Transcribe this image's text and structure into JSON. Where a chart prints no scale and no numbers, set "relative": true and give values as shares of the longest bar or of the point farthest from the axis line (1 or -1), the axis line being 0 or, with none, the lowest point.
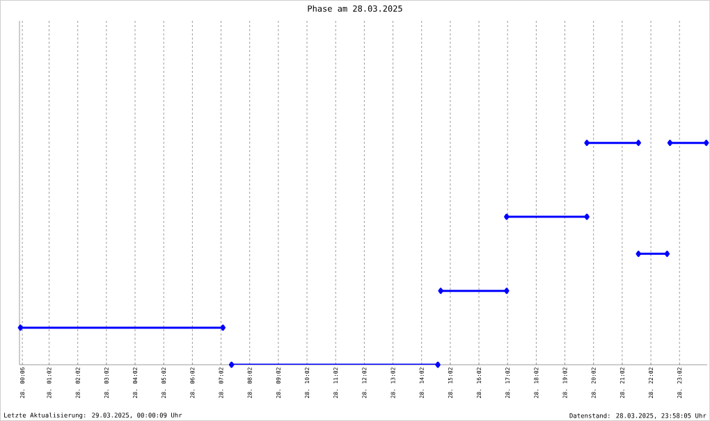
{
  "chart_data": {
    "type": "line",
    "title": "Phase am 28.03.2025",
    "relative": true,
    "grid": "x",
    "marker": "diamond",
    "line_style": "solid",
    "annotations": [
      "Letzte Aktualisierung: 29.03.2025, 00:00:09 Uhr",
      "Datenstand: 28.03.2025, 23:58:05 Uhr"
    ],
    "xlim": [
      "2025-03-28T00:00",
      "2025-03-29T00:00"
    ],
    "xticks": [
      {
        "value": "2025-03-28T00:06",
        "label": "28. 00:06"
      },
      {
        "value": "2025-03-28T01:02",
        "label": "28. 01:02"
      },
      {
        "value": "2025-03-28T02:02",
        "label": "28. 02:02"
      },
      {
        "value": "2025-03-28T03:02",
        "label": "28. 03:02"
      },
      {
        "value": "2025-03-28T04:02",
        "label": "28. 04:02"
      },
      {
        "value": "2025-03-28T05:02",
        "label": "28. 05:02"
      },
      {
        "value": "2025-03-28T06:02",
        "label": "28. 06:02"
      },
      {
        "value": "2025-03-28T07:02",
        "label": "28. 07:02"
      },
      {
        "value": "2025-03-28T08:02",
        "label": "28. 08:02"
      },
      {
        "value": "2025-03-28T09:02",
        "label": "28. 09:02"
      },
      {
        "value": "2025-03-28T10:02",
        "label": "28. 10:02"
      },
      {
        "value": "2025-03-28T11:02",
        "label": "28. 11:02"
      },
      {
        "value": "2025-03-28T12:02",
        "label": "28. 12:02"
      },
      {
        "value": "2025-03-28T13:02",
        "label": "28. 13:02"
      },
      {
        "value": "2025-03-28T14:02",
        "label": "28. 14:02"
      },
      {
        "value": "2025-03-28T15:02",
        "label": "28. 15:02"
      },
      {
        "value": "2025-03-28T16:02",
        "label": "28. 16:02"
      },
      {
        "value": "2025-03-28T17:02",
        "label": "28. 17:02"
      },
      {
        "value": "2025-03-28T18:02",
        "label": "28. 18:02"
      },
      {
        "value": "2025-03-28T19:02",
        "label": "28. 19:02"
      },
      {
        "value": "2025-03-28T20:02",
        "label": "28. 20:02"
      },
      {
        "value": "2025-03-28T21:02",
        "label": "28. 21:02"
      },
      {
        "value": "2025-03-28T22:02",
        "label": "28. 22:02"
      },
      {
        "value": "2025-03-28T23:02",
        "label": "28. 23:02"
      }
    ],
    "series": [
      {
        "color": "#0000ff",
        "x": [
          "2025-03-28T00:02",
          "2025-03-28T07:06",
          null,
          "2025-03-28T07:24",
          "2025-03-28T14:36",
          null,
          "2025-03-28T14:42",
          "2025-03-28T17:00",
          null,
          "2025-03-28T17:00",
          "2025-03-28T19:48",
          null,
          "2025-03-28T19:48",
          "2025-03-28T21:36",
          null,
          "2025-03-28T21:36",
          "2025-03-28T22:36",
          null,
          "2025-03-28T22:42",
          "2025-03-28T23:58"
        ],
        "values": [
          0.167,
          0.167,
          null,
          0,
          0,
          null,
          0.333,
          0.333,
          null,
          0.667,
          0.667,
          null,
          1,
          1,
          null,
          0.5,
          0.5,
          null,
          1,
          1
        ]
      }
    ]
  }
}
